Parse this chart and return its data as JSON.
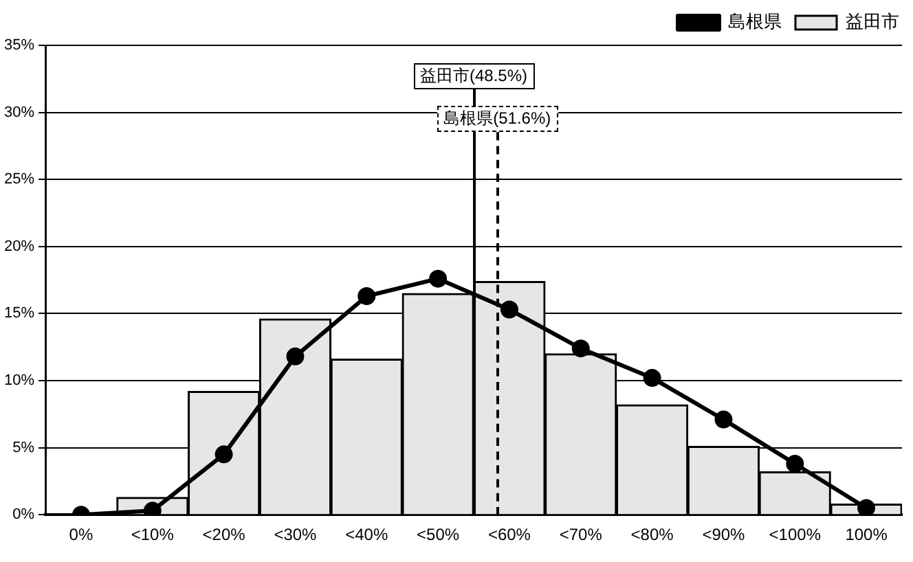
{
  "chart_data": {
    "type": "bar",
    "categories": [
      "0%",
      "<10%",
      "<20%",
      "<30%",
      "<40%",
      "<50%",
      "<60%",
      "<70%",
      "<80%",
      "<90%",
      "<100%",
      "100%"
    ],
    "series": [
      {
        "name": "益田市",
        "type": "bar",
        "color": "#e6e6e6",
        "values": [
          0,
          1.3,
          9.2,
          14.6,
          11.6,
          16.5,
          17.4,
          12.0,
          8.2,
          5.1,
          3.2,
          0.8
        ]
      },
      {
        "name": "島根県",
        "type": "line",
        "color": "#000000",
        "marker": "circle",
        "values": [
          0,
          0.3,
          4.5,
          11.8,
          16.3,
          17.6,
          15.3,
          12.4,
          10.2,
          7.1,
          3.8,
          0.5
        ]
      }
    ],
    "ylim": [
      0,
      35
    ],
    "yticks": [
      {
        "value": 0,
        "label": "0%"
      },
      {
        "value": 5,
        "label": "5%"
      },
      {
        "value": 10,
        "label": "10%"
      },
      {
        "value": 15,
        "label": "15%"
      },
      {
        "value": 20,
        "label": "20%"
      },
      {
        "value": 25,
        "label": "25%"
      },
      {
        "value": 30,
        "label": "30%"
      },
      {
        "value": 35,
        "label": "35%"
      }
    ],
    "annotations": [
      "益田市(48.5%)",
      "島根県(51.6%)"
    ],
    "grid": "y",
    "legend": "top right"
  }
}
